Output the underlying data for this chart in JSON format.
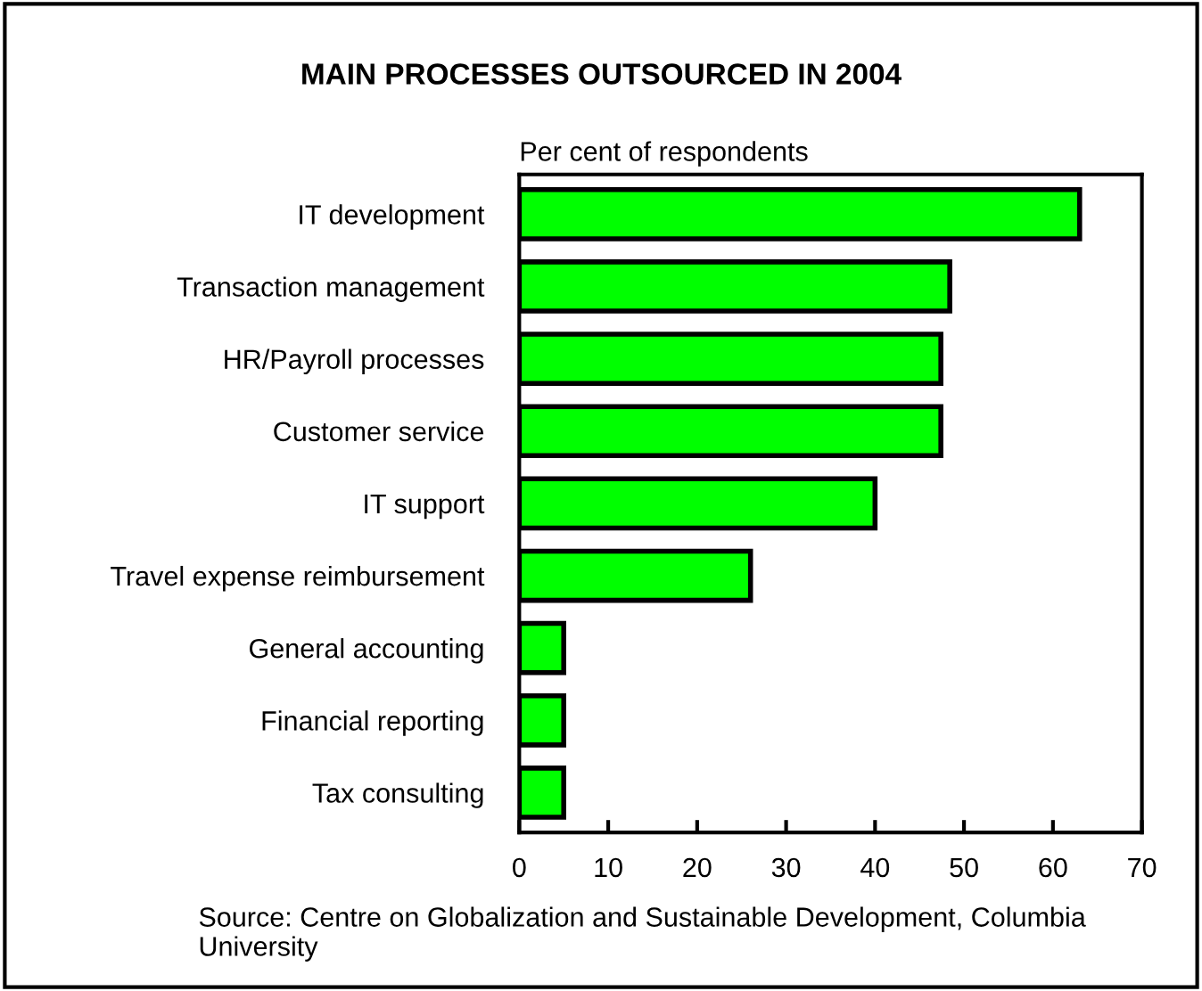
{
  "chart_data": {
    "type": "bar",
    "orientation": "horizontal",
    "title": "MAIN PROCESSES OUTSOURCED IN 2004",
    "subtitle": "Per cent of respondents",
    "categories": [
      "IT development",
      "Transaction management",
      "HR/Payroll processes",
      "Customer service",
      "IT support",
      "Travel expense reimbursement",
      "General accounting",
      "Financial reporting",
      "Tax consulting"
    ],
    "values": [
      63,
      48.4,
      47.4,
      47.4,
      40,
      26,
      5,
      5,
      5
    ],
    "color": "#00ff00",
    "xlim": [
      0,
      70
    ],
    "xticks": [
      0,
      10,
      20,
      30,
      40,
      50,
      60,
      70
    ],
    "grid": false,
    "legend": false,
    "annotations": [
      "Source: Centre on Globalization and Sustainable Development, Columbia University"
    ]
  }
}
